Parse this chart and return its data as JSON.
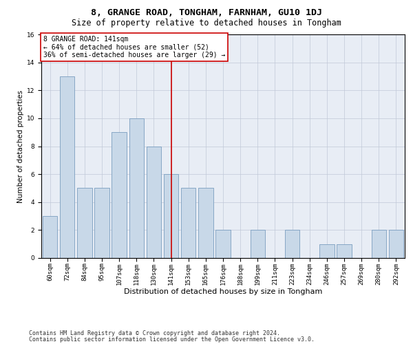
{
  "title1": "8, GRANGE ROAD, TONGHAM, FARNHAM, GU10 1DJ",
  "title2": "Size of property relative to detached houses in Tongham",
  "xlabel": "Distribution of detached houses by size in Tongham",
  "ylabel": "Number of detached properties",
  "categories": [
    "60sqm",
    "72sqm",
    "84sqm",
    "95sqm",
    "107sqm",
    "118sqm",
    "130sqm",
    "141sqm",
    "153sqm",
    "165sqm",
    "176sqm",
    "188sqm",
    "199sqm",
    "211sqm",
    "223sqm",
    "234sqm",
    "246sqm",
    "257sqm",
    "269sqm",
    "280sqm",
    "292sqm"
  ],
  "values": [
    3,
    13,
    5,
    5,
    9,
    10,
    8,
    6,
    5,
    5,
    2,
    0,
    2,
    0,
    2,
    0,
    1,
    1,
    0,
    2,
    2
  ],
  "bar_color": "#c8d8e8",
  "bar_edge_color": "#7a9dbf",
  "highlight_index": 7,
  "highlight_line_color": "#cc0000",
  "annotation_line1": "8 GRANGE ROAD: 141sqm",
  "annotation_line2": "← 64% of detached houses are smaller (52)",
  "annotation_line3": "36% of semi-detached houses are larger (29) →",
  "annotation_box_color": "#ffffff",
  "annotation_box_edge_color": "#cc0000",
  "ylim": [
    0,
    16
  ],
  "yticks": [
    0,
    2,
    4,
    6,
    8,
    10,
    12,
    14,
    16
  ],
  "grid_color": "#c0c8d8",
  "bg_color": "#e8edf5",
  "footer1": "Contains HM Land Registry data © Crown copyright and database right 2024.",
  "footer2": "Contains public sector information licensed under the Open Government Licence v3.0.",
  "title1_fontsize": 9.5,
  "title2_fontsize": 8.5,
  "xlabel_fontsize": 8,
  "ylabel_fontsize": 7.5,
  "tick_fontsize": 6.5,
  "footer_fontsize": 6,
  "annotation_fontsize": 7
}
